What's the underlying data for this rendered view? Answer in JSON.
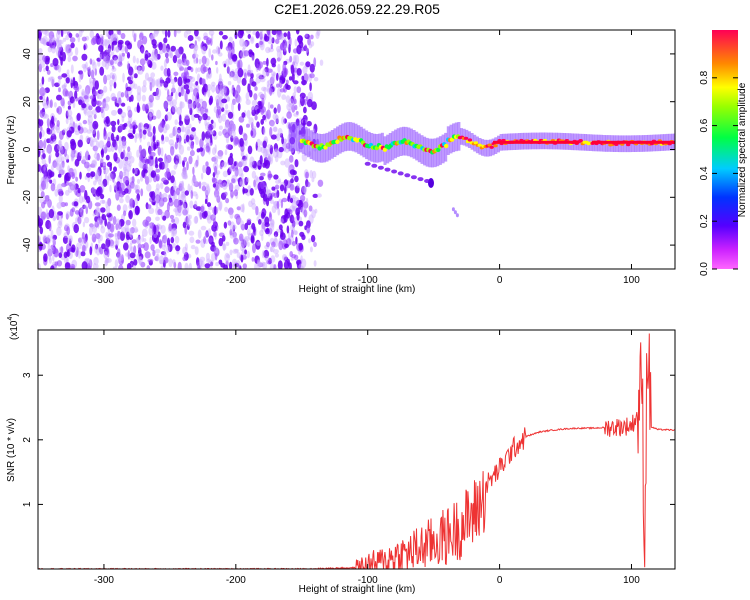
{
  "title": "C2E1.2026.059.22.29.R05",
  "colors": {
    "spectrogram_low": "#6600ee",
    "spectrogram_high": "#ff0000",
    "snr_line": "#ee3333",
    "axis": "#000000"
  },
  "chart_data": [
    {
      "type": "heatmap",
      "title": "C2E1.2026.059.22.29.R05",
      "xlabel": "Height of straight line (km)",
      "ylabel": "Frequency (Hz)",
      "xlim": [
        -350,
        133
      ],
      "ylim": [
        -50,
        50
      ],
      "xticks": [
        -300,
        -200,
        -100,
        0,
        100
      ],
      "yticks": [
        -40,
        -20,
        0,
        20,
        40
      ],
      "x_tick_labels": [
        "-300",
        "-200",
        "-100",
        "0",
        "100"
      ],
      "y_tick_labels": [
        "-40",
        "-20",
        "0",
        "20",
        "40"
      ],
      "colormap": "rainbow (violet to red)",
      "colorbar": {
        "label": "Normalized spectral amplitude",
        "range": [
          0,
          1
        ],
        "ticks": [
          0.0,
          0.2,
          0.4,
          0.6,
          0.8
        ],
        "tick_labels": [
          "0.0",
          "0.2",
          "0.4",
          "0.6",
          "0.8"
        ]
      },
      "regions": [
        {
          "x_range": [
            -350,
            -135
          ],
          "y_range": [
            -50,
            50
          ],
          "amplitude": 0.15,
          "pattern": "scattered noise"
        },
        {
          "x_range": [
            -160,
            133
          ],
          "center_freq_hz": 3,
          "amplitude": 0.95,
          "pattern": "narrow carrier line"
        },
        {
          "x": -52,
          "freq_hz": -14,
          "amplitude": 0.25,
          "pattern": "small blob"
        },
        {
          "x": -35,
          "freq_hz": -25,
          "amplitude": 0.1,
          "pattern": "faint trail"
        }
      ]
    },
    {
      "type": "line",
      "xlabel": "Height of straight line (km)",
      "ylabel": "SNR (10 * v/v)",
      "scale_label": "(x10",
      "scale_exponent": "4",
      "xlim": [
        -350,
        133
      ],
      "ylim": [
        0,
        3.7
      ],
      "xticks": [
        -300,
        -200,
        -100,
        0,
        100
      ],
      "yticks": [
        1,
        2,
        3
      ],
      "x_tick_labels": [
        "-300",
        "-200",
        "-100",
        "0",
        "100"
      ],
      "y_tick_labels": [
        "1",
        "2",
        "3"
      ],
      "series": [
        {
          "x": [
            -350,
            -200,
            -150,
            -110,
            -100,
            -90,
            -80,
            -70,
            -60,
            -50,
            -40,
            -30,
            -20,
            -10,
            0,
            10,
            20,
            30,
            40,
            50,
            60,
            70,
            80,
            90,
            100,
            105,
            108,
            110,
            112,
            115,
            120,
            133
          ],
          "values": [
            0.0,
            0.0,
            0.0,
            0.02,
            0.1,
            0.15,
            0.25,
            0.3,
            0.4,
            0.5,
            0.6,
            0.75,
            0.95,
            1.3,
            1.55,
            1.85,
            2.05,
            2.12,
            2.15,
            2.17,
            2.18,
            2.18,
            2.19,
            2.2,
            2.22,
            2.4,
            3.0,
            0.3,
            3.6,
            2.2,
            2.16,
            2.15
          ]
        }
      ]
    }
  ]
}
